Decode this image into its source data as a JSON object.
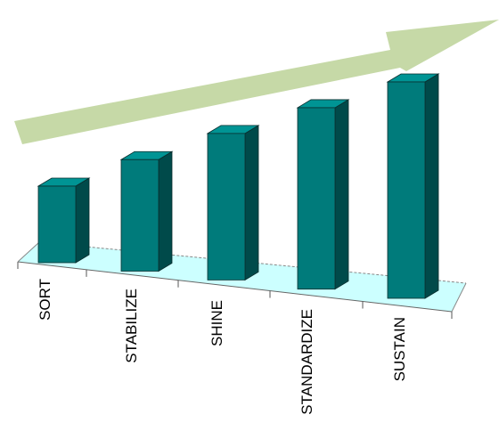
{
  "chart_data": {
    "type": "bar",
    "style": "3d-perspective",
    "categories": [
      "SORT",
      "STABILIZE",
      "SHINE",
      "STANDARDIZE",
      "SUSTAIN"
    ],
    "values": [
      1,
      2,
      3,
      4,
      5
    ],
    "title": "",
    "xlabel": "",
    "ylabel": "",
    "ylim": [
      0,
      5
    ],
    "grid": false,
    "legend": "none",
    "decoration": "upward trend arrow above bars",
    "colors": {
      "bar_front": "#007b7b",
      "bar_top": "#009494",
      "bar_side": "#004a4a",
      "floor": "#ccffff",
      "arrow": "#c6d9a7"
    }
  }
}
